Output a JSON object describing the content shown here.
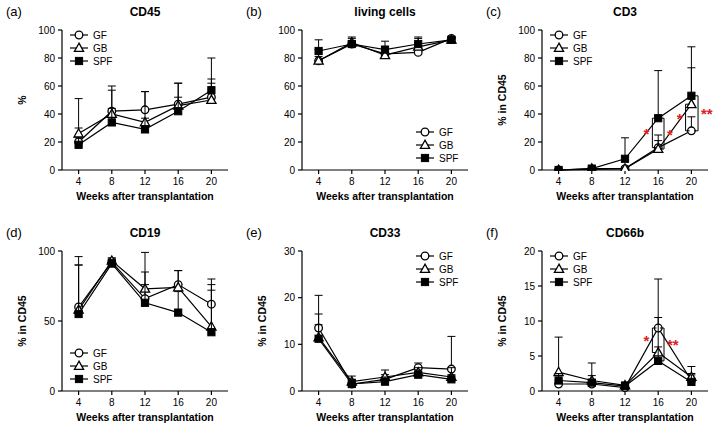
{
  "chart_data": [
    {
      "type": "line",
      "panel": "(a)",
      "title": "CD45",
      "x_label": "Weeks after transplantation",
      "y_label": "%",
      "x": [
        4,
        8,
        12,
        16,
        20
      ],
      "xlim": [
        2,
        22
      ],
      "xticks": [
        4,
        8,
        12,
        16,
        20
      ],
      "ylim": [
        0,
        100
      ],
      "yticks": [
        0,
        20,
        40,
        60,
        80,
        100
      ],
      "grid": false,
      "legend": "upper left",
      "series": [
        {
          "name": "GF",
          "color": "#000000",
          "marker": "circle",
          "values": [
            20,
            42,
            43,
            47,
            52
          ],
          "errors": [
            10,
            15,
            13,
            15,
            10
          ]
        },
        {
          "name": "GB",
          "color": "#000000",
          "marker": "triangle",
          "values": [
            26,
            40,
            34,
            46,
            50
          ],
          "errors": [
            25,
            20,
            22,
            16,
            30
          ]
        },
        {
          "name": "SPF",
          "color": "#000000",
          "marker": "square",
          "values": [
            18,
            34,
            29,
            42,
            57
          ],
          "errors": [
            5,
            10,
            8,
            10,
            8
          ]
        }
      ],
      "annotations": []
    },
    {
      "type": "line",
      "panel": "(b)",
      "title": "living cells",
      "x": [
        4,
        8,
        12,
        16,
        20
      ],
      "xlim": [
        2,
        22
      ],
      "xticks": [
        4,
        8,
        12,
        16,
        20
      ],
      "x_label": "Weeks after transplantation",
      "ylim": [
        0,
        100
      ],
      "yticks": [
        0,
        20,
        40,
        60,
        80,
        100
      ],
      "grid": false,
      "legend": "lower right",
      "series": [
        {
          "name": "GF",
          "color": "#000000",
          "marker": "circle",
          "values": [
            78,
            90,
            83,
            84,
            94
          ],
          "errors": [
            3,
            2,
            3,
            3,
            1
          ]
        },
        {
          "name": "GB",
          "color": "#000000",
          "marker": "triangle",
          "values": [
            78,
            91,
            82,
            88,
            93
          ],
          "errors": [
            8,
            4,
            6,
            6,
            2
          ]
        },
        {
          "name": "SPF",
          "color": "#000000",
          "marker": "square",
          "values": [
            85,
            90,
            86,
            90,
            93
          ],
          "errors": [
            8,
            4,
            6,
            5,
            2
          ]
        }
      ],
      "annotations": []
    },
    {
      "type": "line",
      "panel": "(c)",
      "title": "CD3",
      "x_label": "Weeks after transplantation",
      "y_label": "% in CD45",
      "x": [
        4,
        8,
        12,
        16,
        20
      ],
      "xlim": [
        2,
        22
      ],
      "xticks": [
        4,
        8,
        12,
        16,
        20
      ],
      "ylim": [
        0,
        100
      ],
      "yticks": [
        0,
        20,
        40,
        60,
        80,
        100
      ],
      "grid": false,
      "legend": "upper left",
      "series": [
        {
          "name": "GF",
          "color": "#000000",
          "marker": "circle",
          "values": [
            0,
            0.5,
            1,
            16,
            28
          ],
          "errors": [
            0.5,
            0.5,
            1,
            5,
            10
          ]
        },
        {
          "name": "GB",
          "color": "#000000",
          "marker": "triangle",
          "values": [
            0,
            1,
            1,
            15,
            47
          ],
          "errors": [
            0.5,
            1,
            1,
            10,
            26
          ]
        },
        {
          "name": "SPF",
          "color": "#000000",
          "marker": "square",
          "values": [
            0,
            1,
            8,
            37,
            53
          ],
          "errors": [
            0.5,
            1,
            15,
            34,
            35
          ]
        }
      ],
      "annotations": [
        {
          "x": 15.3,
          "y1": 16,
          "y2": 37,
          "label": "*",
          "color": "#e02020"
        },
        {
          "x": 16.7,
          "y1": 15,
          "y2": 37,
          "label": "*",
          "color": "#e02020"
        },
        {
          "x": 19.3,
          "y1": 28,
          "y2": 47,
          "label": "*",
          "color": "#e02020"
        },
        {
          "x": 20.8,
          "y1": 28,
          "y2": 53,
          "label": "**",
          "color": "#e02020"
        }
      ]
    },
    {
      "type": "line",
      "panel": "(d)",
      "title": "CD19",
      "x_label": "Weeks after transplantation",
      "y_label": "% in CD45",
      "x": [
        4,
        8,
        12,
        16,
        20
      ],
      "xlim": [
        2,
        22
      ],
      "xticks": [
        4,
        8,
        12,
        16,
        20
      ],
      "ylim": [
        0,
        100
      ],
      "yticks": [
        0,
        50,
        100
      ],
      "grid": false,
      "legend": "lower left",
      "series": [
        {
          "name": "GF",
          "color": "#000000",
          "marker": "circle",
          "values": [
            60,
            92,
            66,
            76,
            62
          ],
          "errors": [
            30,
            3,
            10,
            10,
            18
          ]
        },
        {
          "name": "GB",
          "color": "#000000",
          "marker": "triangle",
          "values": [
            58,
            93,
            73,
            74,
            46
          ],
          "errors": [
            38,
            2,
            26,
            12,
            30
          ]
        },
        {
          "name": "SPF",
          "color": "#000000",
          "marker": "square",
          "values": [
            55,
            91,
            63,
            56,
            42
          ],
          "errors": [
            35,
            3,
            22,
            15,
            30
          ]
        }
      ],
      "annotations": []
    },
    {
      "type": "line",
      "panel": "(e)",
      "title": "CD33",
      "x_label": "Weeks after transplantation",
      "y_label": "% in CD45",
      "x": [
        4,
        8,
        12,
        16,
        20
      ],
      "xlim": [
        2,
        22
      ],
      "xticks": [
        4,
        8,
        12,
        16,
        20
      ],
      "ylim": [
        0,
        30
      ],
      "yticks": [
        0,
        10,
        20,
        30
      ],
      "grid": false,
      "legend": "upper right",
      "series": [
        {
          "name": "GF",
          "color": "#000000",
          "marker": "circle",
          "values": [
            13.5,
            1.5,
            2.5,
            5,
            4.7
          ],
          "errors": [
            7,
            1,
            1,
            1,
            7
          ]
        },
        {
          "name": "GB",
          "color": "#000000",
          "marker": "triangle",
          "values": [
            11.5,
            2,
            3,
            4,
            3
          ],
          "errors": [
            5,
            1.2,
            1.5,
            1,
            2
          ]
        },
        {
          "name": "SPF",
          "color": "#000000",
          "marker": "square",
          "values": [
            11.2,
            1.5,
            2,
            3.5,
            2.5
          ],
          "errors": [
            3,
            1,
            1,
            1,
            1
          ]
        }
      ],
      "annotations": []
    },
    {
      "type": "line",
      "panel": "(f)",
      "title": "CD66b",
      "x_label": "Weeks after transplantation",
      "y_label": "% in CD45",
      "x": [
        4,
        8,
        12,
        16,
        20
      ],
      "xlim": [
        2,
        22
      ],
      "xticks": [
        4,
        8,
        12,
        16,
        20
      ],
      "ylim": [
        0,
        20
      ],
      "yticks": [
        0,
        5,
        10,
        15,
        20
      ],
      "grid": false,
      "legend": "upper left",
      "series": [
        {
          "name": "GF",
          "color": "#000000",
          "marker": "circle",
          "values": [
            1,
            1,
            0.5,
            9,
            1.5
          ],
          "errors": [
            0.5,
            0.5,
            0.5,
            7,
            1
          ]
        },
        {
          "name": "GB",
          "color": "#000000",
          "marker": "triangle",
          "values": [
            2.7,
            1.5,
            0.8,
            5.5,
            2
          ],
          "errors": [
            5,
            2.5,
            0.5,
            5,
            1.5
          ]
        },
        {
          "name": "SPF",
          "color": "#000000",
          "marker": "square",
          "values": [
            1.5,
            1.2,
            0.7,
            4.3,
            1.3
          ],
          "errors": [
            1,
            1,
            0.5,
            2,
            1
          ]
        }
      ],
      "annotations": [
        {
          "x": 15.3,
          "y1": 5.5,
          "y2": 9,
          "label": "*",
          "color": "#e02020"
        },
        {
          "x": 16.7,
          "y1": 4.3,
          "y2": 9,
          "label": "**",
          "color": "#e02020"
        }
      ]
    }
  ]
}
